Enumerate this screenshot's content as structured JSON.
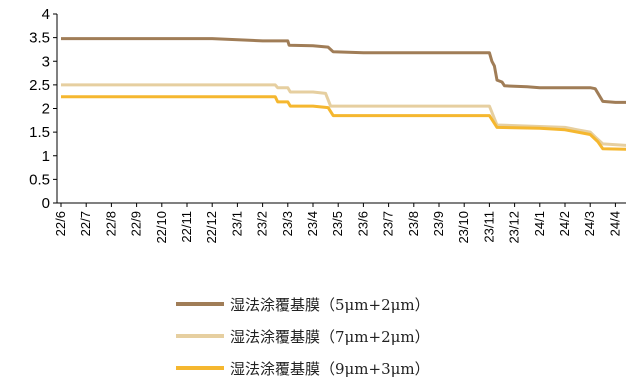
{
  "chart_data": {
    "type": "line",
    "title": "",
    "xlabel": "",
    "ylabel": "",
    "ylim": [
      0,
      4
    ],
    "yticks": [
      "0",
      "0.5",
      "1",
      "1.5",
      "2",
      "2.5",
      "3",
      "3.5",
      "4"
    ],
    "grid": false,
    "legend_position": "bottom",
    "categories": [
      "22/6",
      "22/7",
      "22/8",
      "22/9",
      "22/10",
      "22/11",
      "22/12",
      "23/1",
      "23/2",
      "23/3",
      "23/4",
      "23/5",
      "23/6",
      "23/7",
      "23/8",
      "23/9",
      "23/10",
      "23/11",
      "23/12",
      "24/1",
      "24/2",
      "24/3",
      "24/4"
    ],
    "series": [
      {
        "name": "湿法涂覆基膜（5μm+2μm）",
        "color": "#A07D57",
        "points": [
          [
            0,
            3.48
          ],
          [
            6.0,
            3.48
          ],
          [
            8.0,
            3.43
          ],
          [
            9.0,
            3.43
          ],
          [
            9.05,
            3.34
          ],
          [
            10.0,
            3.33
          ],
          [
            10.6,
            3.3
          ],
          [
            10.8,
            3.2
          ],
          [
            12.0,
            3.18
          ],
          [
            17.0,
            3.18
          ],
          [
            17.1,
            3.0
          ],
          [
            17.2,
            2.9
          ],
          [
            17.3,
            2.6
          ],
          [
            17.5,
            2.56
          ],
          [
            17.6,
            2.48
          ],
          [
            18.5,
            2.46
          ],
          [
            19.0,
            2.44
          ],
          [
            21.0,
            2.44
          ],
          [
            21.2,
            2.42
          ],
          [
            21.5,
            2.15
          ],
          [
            22.0,
            2.13
          ],
          [
            23.0,
            2.13
          ]
        ]
      },
      {
        "name": "湿法涂覆基膜（7μm+2μm）",
        "color": "#E6CFA0",
        "points": [
          [
            0,
            2.5
          ],
          [
            8.5,
            2.5
          ],
          [
            8.6,
            2.44
          ],
          [
            9.0,
            2.44
          ],
          [
            9.1,
            2.35
          ],
          [
            10.0,
            2.35
          ],
          [
            10.5,
            2.32
          ],
          [
            10.7,
            2.05
          ],
          [
            17.0,
            2.05
          ],
          [
            17.3,
            1.65
          ],
          [
            19.0,
            1.62
          ],
          [
            20.0,
            1.6
          ],
          [
            20.5,
            1.55
          ],
          [
            21.0,
            1.5
          ],
          [
            21.2,
            1.4
          ],
          [
            21.5,
            1.25
          ],
          [
            23.0,
            1.2
          ]
        ]
      },
      {
        "name": "湿法涂覆基膜（9μm+3μm）",
        "color": "#F5B72F",
        "points": [
          [
            0,
            2.25
          ],
          [
            8.5,
            2.25
          ],
          [
            8.6,
            2.14
          ],
          [
            9.0,
            2.14
          ],
          [
            9.1,
            2.05
          ],
          [
            10.0,
            2.05
          ],
          [
            10.6,
            2.02
          ],
          [
            10.8,
            1.85
          ],
          [
            17.0,
            1.85
          ],
          [
            17.3,
            1.6
          ],
          [
            19.0,
            1.58
          ],
          [
            20.0,
            1.55
          ],
          [
            20.5,
            1.5
          ],
          [
            21.0,
            1.45
          ],
          [
            21.3,
            1.3
          ],
          [
            21.5,
            1.15
          ],
          [
            23.0,
            1.13
          ]
        ]
      }
    ]
  }
}
